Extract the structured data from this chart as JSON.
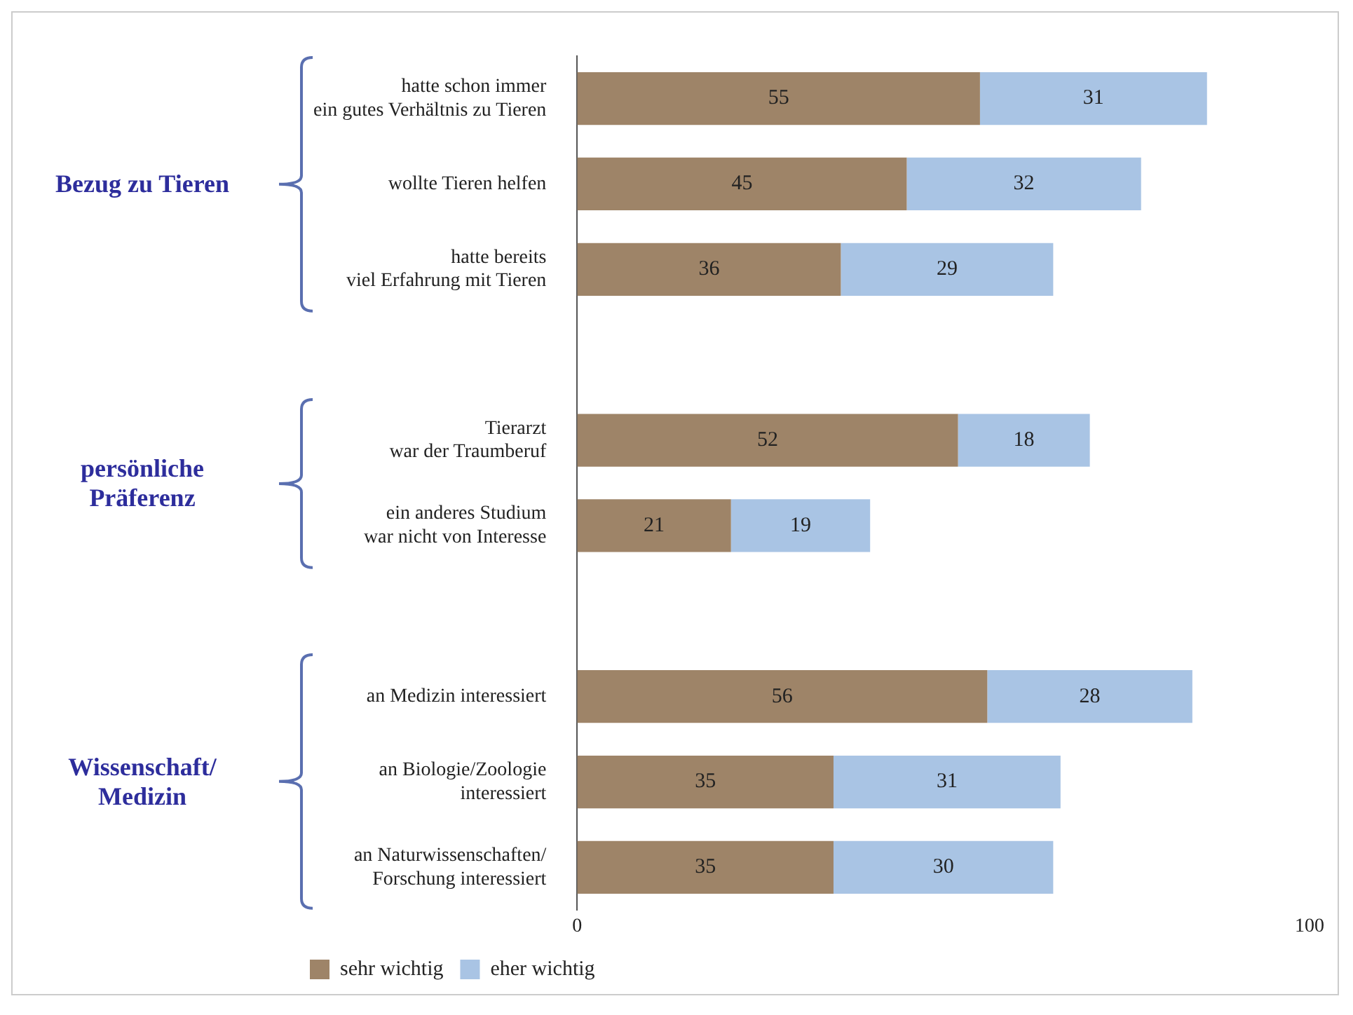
{
  "chart_data": {
    "type": "bar",
    "orientation": "horizontal",
    "stacked": true,
    "categories": [
      "hatte schon immer\nein gutes Verhältnis zu Tieren",
      "wollte Tieren helfen",
      "hatte bereits\nviel Erfahrung mit Tieren",
      null,
      "Tierarzt\nwar der Traumberuf",
      "ein anderes Studium\nwar nicht von Interesse",
      null,
      "an Medizin interessiert",
      "an Biologie/Zoologie\ninteressiert",
      "an Naturwissenschaften/\nForschung interessiert"
    ],
    "series": [
      {
        "name": "sehr wichtig",
        "color": "#9e8468",
        "values": [
          55,
          45,
          36,
          null,
          52,
          21,
          null,
          56,
          35,
          35
        ]
      },
      {
        "name": "eher wichtig",
        "color": "#a9c4e4",
        "values": [
          31,
          32,
          29,
          null,
          18,
          19,
          null,
          28,
          31,
          30
        ]
      }
    ],
    "xlim": [
      0,
      100
    ],
    "xticks": [
      0,
      100
    ],
    "grid": false,
    "legend": "bottom",
    "data_labels": true,
    "annotations": [
      "Bezug zu Tieren",
      "persönliche\nPräferenz",
      "Wissenschaft/\nMedizin"
    ]
  }
}
